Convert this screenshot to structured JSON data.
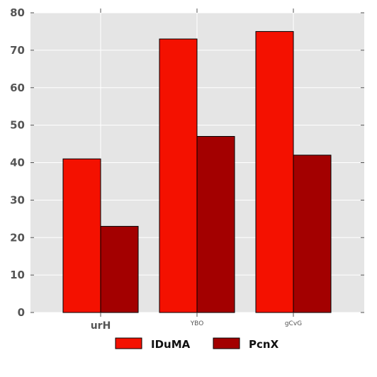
{
  "chart_data": {
    "type": "bar",
    "categories": [
      "urH",
      "YBO",
      "gCvG"
    ],
    "category_label_bold": [
      true,
      false,
      false
    ],
    "series": [
      {
        "name": "IDuMA",
        "values": [
          41,
          73,
          75
        ],
        "color": "#f41100"
      },
      {
        "name": "PcnX",
        "values": [
          23,
          47,
          42
        ],
        "color": "#a30000"
      }
    ],
    "ylim": [
      0,
      80
    ],
    "yticks": [
      0,
      10,
      20,
      30,
      40,
      50,
      60,
      70,
      80
    ],
    "grid": true,
    "plot_background": "#e5e5e5",
    "grid_color": "#ffffff",
    "legend_placement": "bottom-center"
  }
}
